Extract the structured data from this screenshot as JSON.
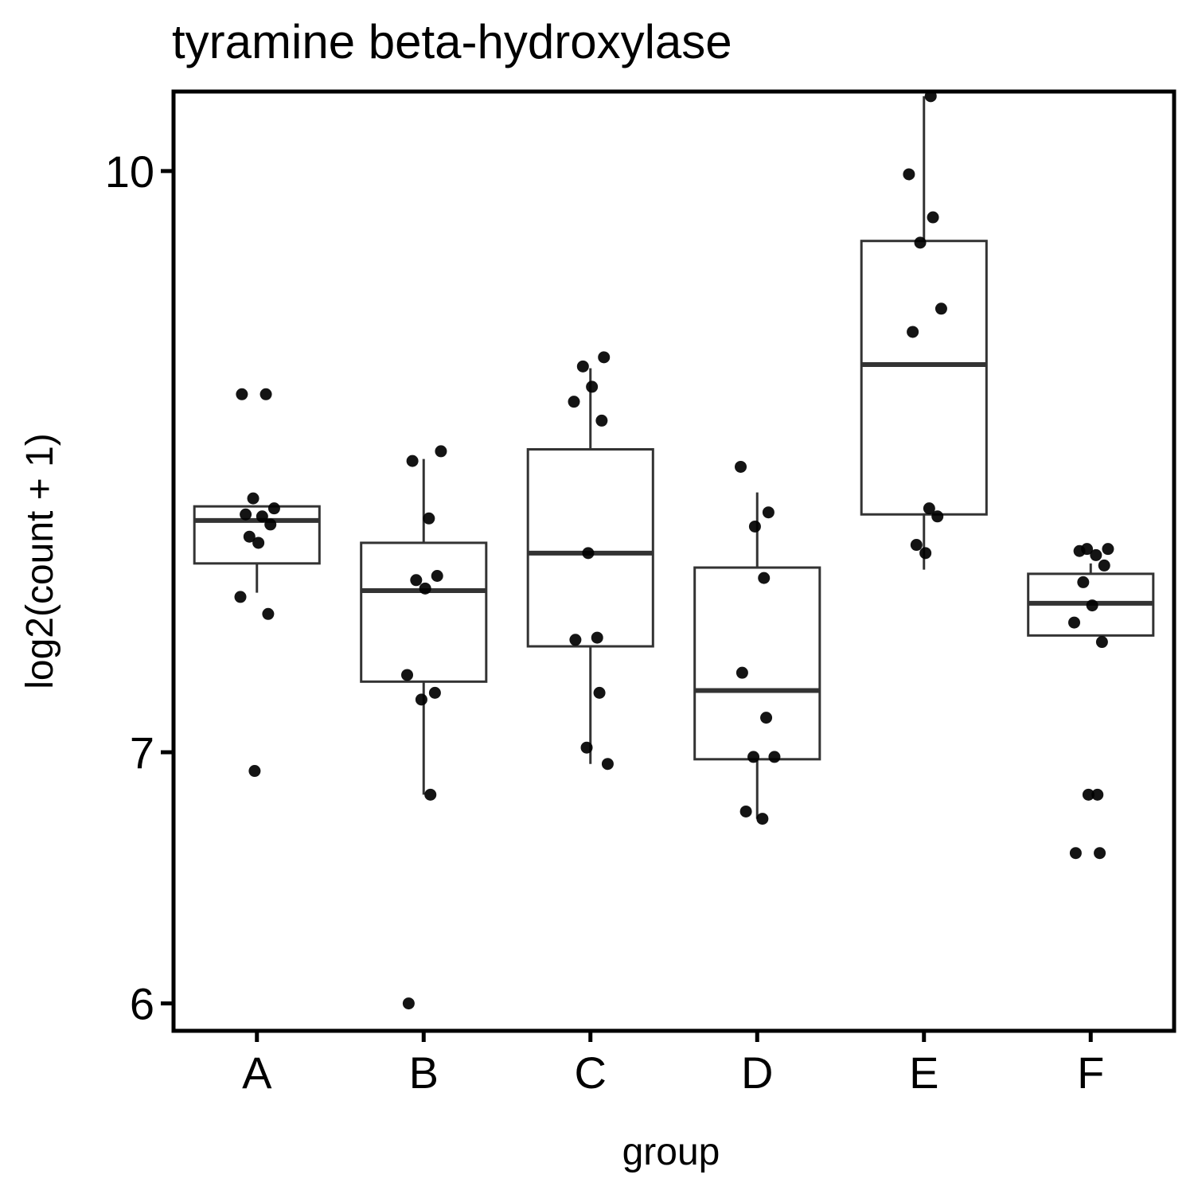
{
  "chart_data": {
    "type": "box",
    "title": "tyramine beta-hydroxylase",
    "xlabel": "group",
    "ylabel": "log2(count + 1)",
    "y_scale": "log",
    "ylim": [
      5.9,
      10.5
    ],
    "y_ticks": [
      6,
      7,
      10
    ],
    "grid": false,
    "legend": "none",
    "categories": [
      "A",
      "B",
      "C",
      "D",
      "E",
      "F"
    ],
    "boxes": [
      {
        "group": "A",
        "whisker_low": 7.72,
        "q1": 7.86,
        "median": 8.07,
        "q3": 8.14,
        "whisker_high": 8.14
      },
      {
        "group": "B",
        "whisker_low": 6.82,
        "q1": 7.31,
        "median": 7.73,
        "q3": 7.96,
        "whisker_high": 8.38
      },
      {
        "group": "C",
        "whisker_low": 6.95,
        "q1": 7.47,
        "median": 7.91,
        "q3": 8.43,
        "whisker_high": 8.86
      },
      {
        "group": "D",
        "whisker_low": 6.72,
        "q1": 6.97,
        "median": 7.27,
        "q3": 7.84,
        "whisker_high": 8.21
      },
      {
        "group": "E",
        "whisker_low": 7.83,
        "q1": 8.1,
        "median": 8.88,
        "q3": 9.58,
        "whisker_high": 10.47
      },
      {
        "group": "F",
        "whisker_low": 7.52,
        "q1": 7.52,
        "median": 7.67,
        "q3": 7.81,
        "whisker_high": 7.86
      }
    ],
    "points": [
      {
        "group": "A",
        "y": [
          8.72,
          8.72,
          8.18,
          8.13,
          8.1,
          8.09,
          8.05,
          7.99,
          7.96,
          7.7,
          7.62,
          6.92
        ]
      },
      {
        "group": "B",
        "y": [
          8.42,
          8.37,
          8.08,
          7.8,
          7.78,
          7.74,
          7.34,
          7.26,
          7.23,
          6.82,
          6.0
        ]
      },
      {
        "group": "C",
        "y": [
          8.92,
          8.87,
          8.76,
          8.68,
          8.58,
          7.91,
          7.51,
          7.5,
          7.26,
          7.02,
          6.95
        ]
      },
      {
        "group": "D",
        "y": [
          8.34,
          8.11,
          8.04,
          7.79,
          7.35,
          7.15,
          6.98,
          6.98,
          6.75,
          6.72
        ]
      },
      {
        "group": "E",
        "y": [
          10.47,
          9.98,
          9.72,
          9.57,
          9.19,
          9.06,
          8.13,
          8.09,
          7.95,
          7.91
        ]
      },
      {
        "group": "F",
        "y": [
          7.93,
          7.93,
          7.92,
          7.9,
          7.85,
          7.77,
          7.66,
          7.58,
          7.49,
          6.82,
          6.82,
          6.58,
          6.58
        ]
      }
    ]
  }
}
